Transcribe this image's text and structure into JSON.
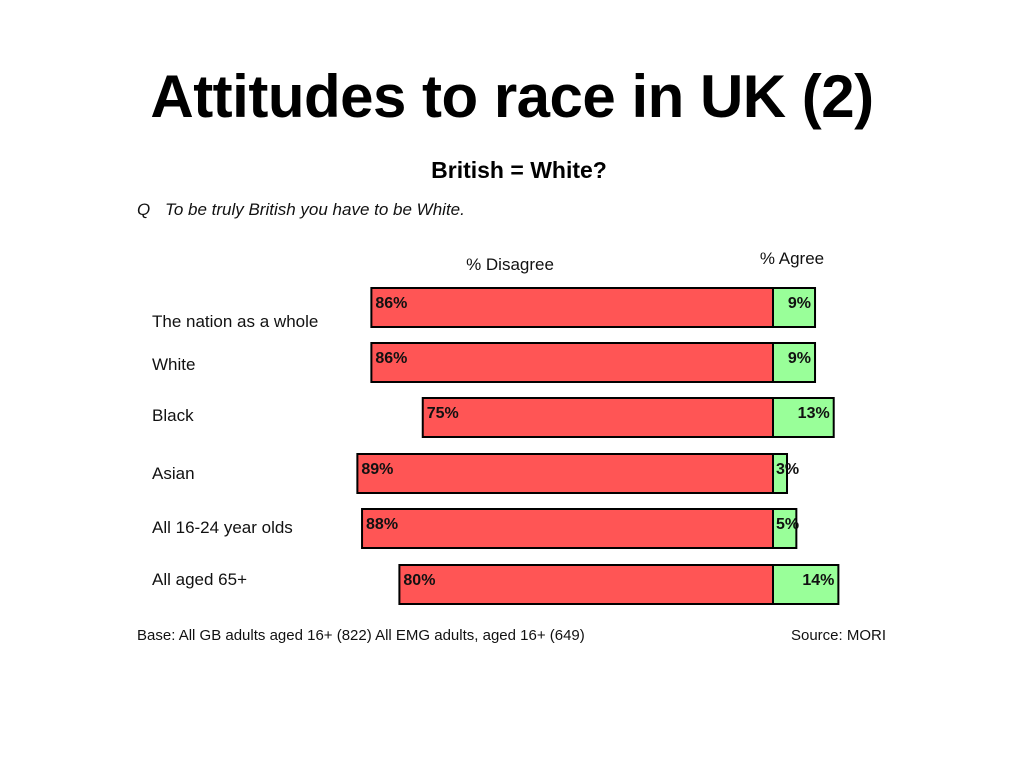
{
  "slide": {
    "title": "Attitudes to race in UK (2)"
  },
  "chart_data": {
    "type": "bar",
    "title": "British = White?",
    "question_prefix": "Q",
    "question": "To be truly British you have to be White.",
    "series": [
      {
        "name": "% Disagree",
        "values": [
          86,
          86,
          75,
          89,
          88,
          80
        ],
        "color": "#ff5555"
      },
      {
        "name": "% Agree",
        "values": [
          9,
          9,
          13,
          3,
          5,
          14
        ],
        "color": "#99ff99"
      }
    ],
    "categories": [
      "The nation as a whole",
      "White",
      "Black",
      "Asian",
      "All 16-24 year olds",
      "All aged 65+"
    ],
    "value_suffix": "%",
    "base_note": "Base:  All GB adults  aged 16+ (822)  All EMG adults, aged 16+ (649)",
    "source": "Source: MORI"
  }
}
